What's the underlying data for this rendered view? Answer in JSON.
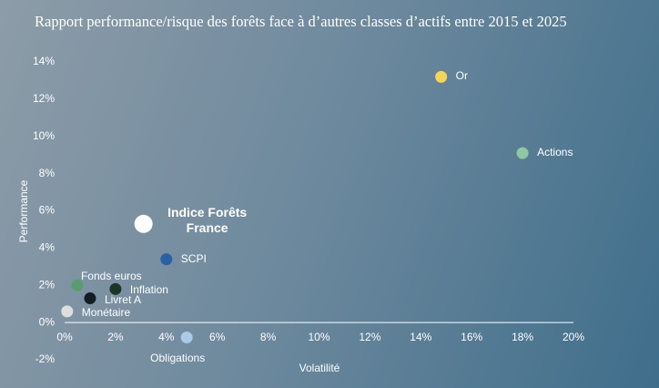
{
  "chart_data": {
    "type": "scatter",
    "title": "Rapport performance/risque des forêts face à d’autres classes d’actifs entre 2015 et 2025",
    "x_label": "Volatilité",
    "y_label": "Performance",
    "xlim": [
      0,
      20
    ],
    "ylim": [
      -2,
      14
    ],
    "xticks": [
      {
        "value": 0,
        "label": "0%"
      },
      {
        "value": 2,
        "label": "2%"
      },
      {
        "value": 4,
        "label": "4%"
      },
      {
        "value": 6,
        "label": "6%"
      },
      {
        "value": 8,
        "label": "8%"
      },
      {
        "value": 10,
        "label": "10%"
      },
      {
        "value": 12,
        "label": "12%"
      },
      {
        "value": 14,
        "label": "14%"
      },
      {
        "value": 16,
        "label": "16%"
      },
      {
        "value": 18,
        "label": "18%"
      },
      {
        "value": 20,
        "label": "20%"
      }
    ],
    "yticks": [
      {
        "value": -2,
        "label": "-2%"
      },
      {
        "value": 0,
        "label": "0%"
      },
      {
        "value": 2,
        "label": "2%"
      },
      {
        "value": 4,
        "label": "4%"
      },
      {
        "value": 6,
        "label": "6%"
      },
      {
        "value": 8,
        "label": "8%"
      },
      {
        "value": 10,
        "label": "10%"
      },
      {
        "value": 12,
        "label": "12%"
      },
      {
        "value": 14,
        "label": "14%"
      }
    ],
    "points": [
      {
        "name": "Or",
        "x": 14.8,
        "y": 13.2,
        "color": "#f6d45a"
      },
      {
        "name": "Actions",
        "x": 18.0,
        "y": 9.1,
        "color": "#8fc7a2"
      },
      {
        "name": "Indice Forêts France",
        "x": 3.1,
        "y": 5.3,
        "color": "#ffffff",
        "highlight": true
      },
      {
        "name": "SCPI",
        "x": 4.0,
        "y": 3.4,
        "color": "#2b5fa6"
      },
      {
        "name": "Fonds euros",
        "x": 0.5,
        "y": 2.0,
        "color": "#5a9c6c"
      },
      {
        "name": "Inflation",
        "x": 2.0,
        "y": 1.8,
        "color": "#1d3527"
      },
      {
        "name": "Livret A",
        "x": 1.0,
        "y": 1.3,
        "color": "#141d24"
      },
      {
        "name": "Monétaire",
        "x": 0.1,
        "y": 0.6,
        "color": "#dedede"
      },
      {
        "name": "Obligations",
        "x": 4.8,
        "y": -0.8,
        "color": "#aacbe6"
      }
    ]
  }
}
